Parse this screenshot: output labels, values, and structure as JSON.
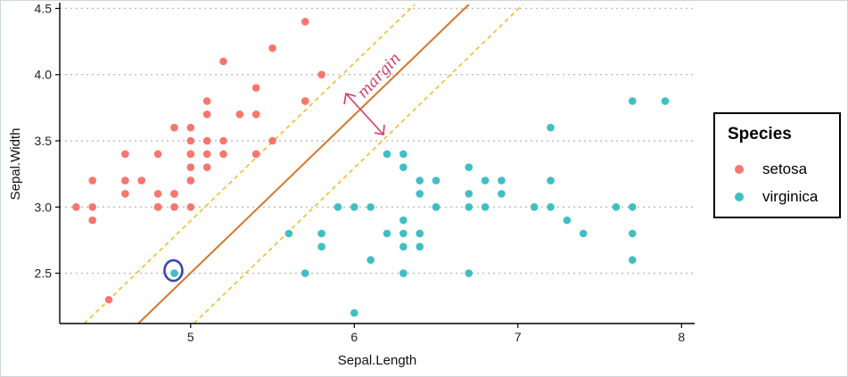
{
  "colors": {
    "setosa": "#f8766d",
    "virginica": "#3fbfc4",
    "hyperplane": "#d5772a",
    "margin": "#f2bd2b",
    "annotation": "#d63a68",
    "circle": "#3a46b0"
  },
  "chart_data": {
    "type": "scatter",
    "xlabel": "Sepal.Length",
    "ylabel": "Sepal.Width",
    "xlim": [
      4.2,
      8.08
    ],
    "ylim": [
      2.12,
      4.53
    ],
    "xticks": [
      5,
      6,
      7,
      8
    ],
    "yticks": [
      2.5,
      3.0,
      3.5,
      4.0,
      4.5
    ],
    "grid": "horizontal dotted",
    "legend_placement": "right",
    "legend_title": "Species",
    "series": [
      {
        "name": "setosa",
        "color": "#f8766d",
        "x": [
          4.3,
          4.4,
          4.4,
          4.4,
          4.5,
          4.6,
          4.6,
          4.6,
          4.7,
          4.8,
          4.8,
          4.8,
          4.8,
          4.9,
          4.9,
          4.9,
          4.9,
          5.0,
          5.0,
          5.0,
          5.0,
          5.0,
          5.0,
          5.0,
          5.0,
          5.1,
          5.1,
          5.1,
          5.1,
          5.1,
          5.1,
          5.2,
          5.2,
          5.2,
          5.3,
          5.4,
          5.4,
          5.4,
          5.4,
          5.5,
          5.5,
          5.7,
          5.7,
          5.7,
          5.8
        ],
        "y": [
          3.0,
          2.9,
          3.0,
          3.2,
          2.3,
          3.1,
          3.2,
          3.4,
          3.2,
          3.0,
          3.1,
          3.4,
          3.0,
          3.0,
          3.1,
          3.6,
          3.1,
          3.0,
          3.2,
          3.3,
          3.4,
          3.5,
          3.6,
          3.2,
          3.4,
          3.3,
          3.5,
          3.7,
          3.8,
          3.4,
          3.5,
          3.4,
          3.5,
          4.1,
          3.7,
          3.4,
          3.7,
          3.9,
          3.4,
          3.5,
          4.2,
          3.8,
          4.4,
          3.8,
          4.0
        ]
      },
      {
        "name": "virginica",
        "color": "#3fbfc4",
        "x": [
          4.9,
          5.6,
          5.7,
          5.8,
          5.8,
          5.9,
          6.0,
          6.0,
          6.1,
          6.1,
          6.2,
          6.2,
          6.3,
          6.3,
          6.3,
          6.3,
          6.3,
          6.3,
          6.3,
          6.4,
          6.4,
          6.4,
          6.4,
          6.4,
          6.5,
          6.5,
          6.5,
          6.7,
          6.7,
          6.7,
          6.7,
          6.8,
          6.8,
          6.9,
          6.9,
          7.1,
          7.2,
          7.2,
          7.2,
          7.3,
          7.4,
          7.6,
          7.7,
          7.7,
          7.7,
          7.7,
          7.9
        ],
        "y": [
          2.5,
          2.8,
          2.5,
          2.7,
          2.8,
          3.0,
          2.2,
          3.0,
          2.6,
          3.0,
          2.8,
          3.4,
          2.5,
          2.7,
          2.8,
          2.9,
          3.3,
          3.4,
          2.5,
          2.7,
          2.8,
          3.1,
          3.2,
          2.8,
          3.0,
          3.2,
          3.0,
          2.5,
          3.0,
          3.1,
          3.3,
          3.0,
          3.2,
          3.1,
          3.2,
          3.0,
          3.0,
          3.2,
          3.6,
          2.9,
          2.8,
          3.0,
          2.6,
          2.8,
          3.0,
          3.8,
          3.8
        ]
      }
    ],
    "lines": {
      "hyperplane": {
        "x": [
          4.68,
          6.7
        ],
        "y": [
          2.12,
          4.53
        ]
      },
      "margin_lower": {
        "x": [
          5.02,
          7.03
        ],
        "y": [
          2.12,
          4.53
        ]
      },
      "margin_upper": {
        "x": [
          4.35,
          6.37
        ],
        "y": [
          2.12,
          4.53
        ]
      }
    },
    "annotation": "margin",
    "highlight": {
      "x": 4.9,
      "y": 2.5
    }
  },
  "legend": {
    "title": "Species",
    "items": [
      {
        "label": "setosa",
        "color": "#f8766d"
      },
      {
        "label": "virginica",
        "color": "#3fbfc4"
      }
    ]
  }
}
